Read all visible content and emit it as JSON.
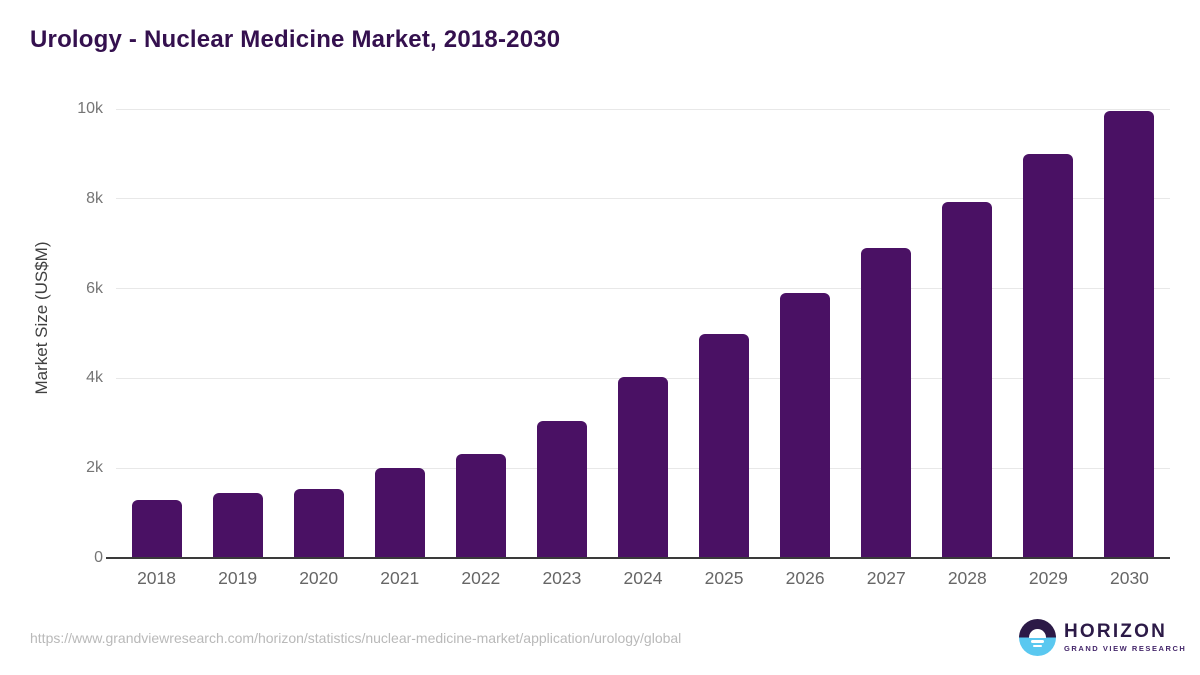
{
  "page": {
    "background": "#ffffff"
  },
  "chart_data": {
    "type": "bar",
    "title": "Urology - Nuclear Medicine Market, 2018-2030",
    "xlabel": "",
    "ylabel": "Market Size (US$M)",
    "categories": [
      "2018",
      "2019",
      "2020",
      "2021",
      "2022",
      "2023",
      "2024",
      "2025",
      "2026",
      "2027",
      "2028",
      "2029",
      "2030"
    ],
    "values": [
      1290,
      1450,
      1540,
      2000,
      2310,
      3060,
      4030,
      5000,
      5910,
      6900,
      7920,
      8990,
      9950
    ],
    "ylim": [
      0,
      10000
    ],
    "yticks": [
      0,
      2000,
      4000,
      6000,
      8000,
      10000
    ],
    "ytick_labels": [
      "0",
      "2k",
      "4k",
      "6k",
      "8k",
      "10k"
    ],
    "grid": true,
    "legend_position": "none",
    "bar_color": "#4a1164"
  },
  "footer": {
    "url": "https://www.grandviewresearch.com/horizon/statistics/nuclear-medicine-market/application/urology/global",
    "logo": {
      "icon": "horizon-sunrise-circle-icon",
      "name": "HORIZON",
      "subtitle": "GRAND VIEW RESEARCH"
    }
  },
  "colors": {
    "title": "#34104e",
    "bar": "#4a1164",
    "grid": "#e8e8e8",
    "axis_line": "#3a3a3a",
    "ytick": "#757575",
    "xtick": "#666666",
    "ylabel": "#404040",
    "url": "#b9b9b9",
    "logo_purple": "#2c1a47",
    "logo_blue": "#5ac8f0",
    "logo_sub": "#45276b"
  }
}
